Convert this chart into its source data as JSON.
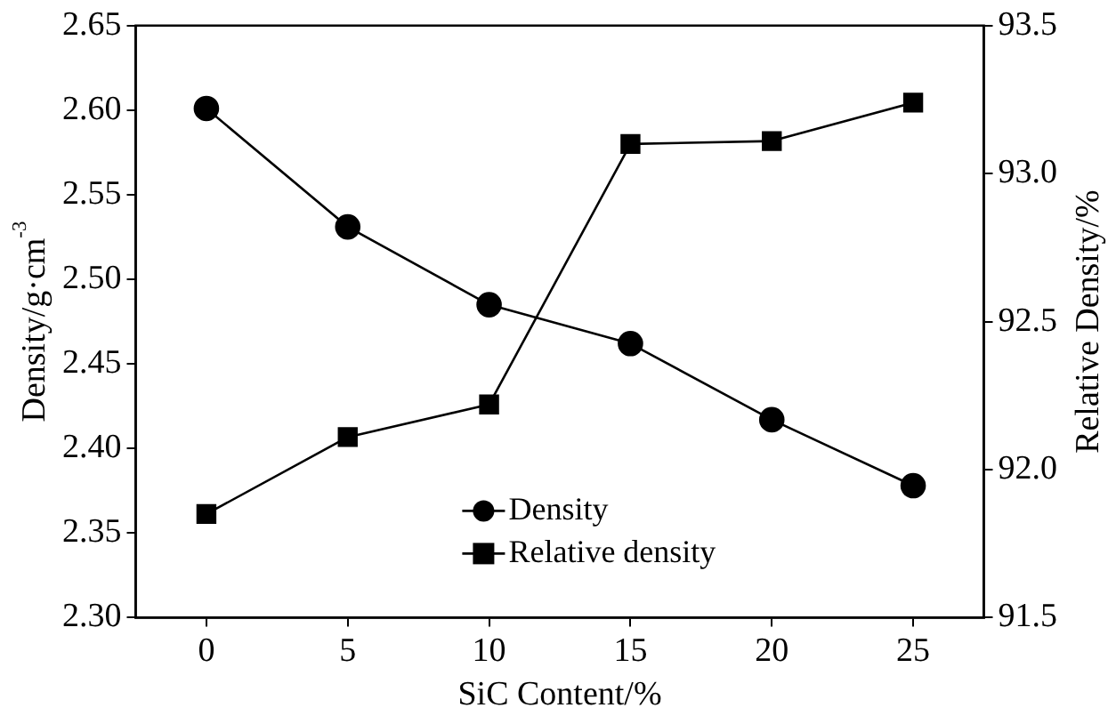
{
  "chart_data": {
    "type": "line",
    "xlabel": "SiC Content/%",
    "ylabel": "Density/g·cm$^{-3}$",
    "y2label": "Relative Density/%",
    "x": [
      0,
      5,
      10,
      15,
      20,
      25
    ],
    "series": [
      {
        "name": "Density",
        "color": "#000000",
        "marker": "circle",
        "values": [
          2.601,
          2.531,
          2.485,
          2.462,
          2.417,
          2.378
        ]
      },
      {
        "name": "Relative density",
        "color": "#000000",
        "marker": "square",
        "axis": "y2",
        "values": [
          91.85,
          92.11,
          92.22,
          93.1,
          93.11,
          93.24
        ]
      }
    ],
    "xlim": [
      -2.5,
      27.5
    ],
    "xticks": [
      0,
      5,
      10,
      15,
      20,
      25
    ],
    "ylim": [
      2.3,
      2.65
    ],
    "yticks": [
      {
        "value": 2.3,
        "label": "2.30"
      },
      {
        "value": 2.35,
        "label": "2.35"
      },
      {
        "value": 2.4,
        "label": "2.40"
      },
      {
        "value": 2.45,
        "label": "2.45"
      },
      {
        "value": 2.5,
        "label": "2.50"
      },
      {
        "value": 2.55,
        "label": "2.55"
      },
      {
        "value": 2.6,
        "label": "2.60"
      },
      {
        "value": 2.65,
        "label": "2.65"
      }
    ],
    "y2lim": [
      91.5,
      93.5
    ],
    "y2ticks": [
      {
        "value": 91.5,
        "label": "91.5"
      },
      {
        "value": 92,
        "label": "92.0"
      },
      {
        "value": 92.5,
        "label": "92.5"
      },
      {
        "value": 93,
        "label": "93.0"
      },
      {
        "value": 93.5,
        "label": "93.5"
      }
    ],
    "grid": false,
    "legend": "bottom",
    "line_style": "solid"
  }
}
